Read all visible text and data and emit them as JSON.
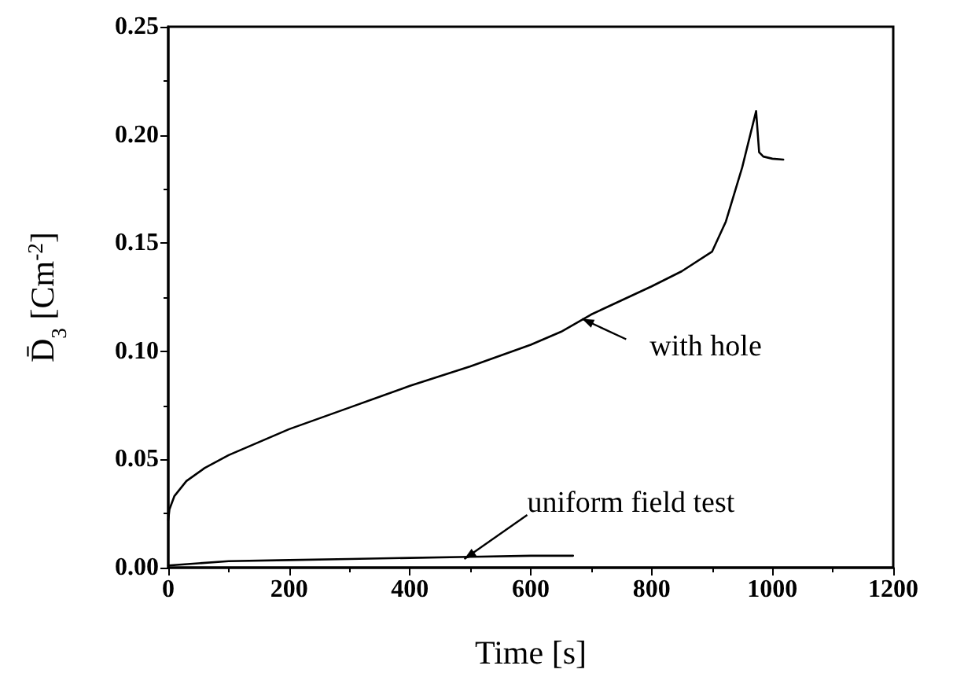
{
  "chart_data": {
    "type": "line",
    "xlabel": "Time [s]",
    "ylabel": "D̄$_{3}$ [Cm$^{-2}$]",
    "series": [
      {
        "color": "#000000",
        "x": [
          0,
          2,
          10,
          30,
          60,
          100,
          150,
          200,
          300,
          400,
          500,
          600,
          650,
          700,
          800,
          850,
          900,
          923,
          950,
          973,
          978,
          985,
          1000,
          1018
        ],
        "values": [
          0.022,
          0.027,
          0.033,
          0.04,
          0.046,
          0.052,
          0.058,
          0.064,
          0.074,
          0.084,
          0.093,
          0.103,
          0.109,
          0.117,
          0.13,
          0.137,
          0.146,
          0.16,
          0.185,
          0.211,
          0.192,
          0.19,
          0.189,
          0.1886
        ]
      },
      {
        "color": "#000000",
        "x": [
          0,
          50,
          100,
          200,
          300,
          400,
          500,
          600,
          670
        ],
        "values": [
          0.001,
          0.002,
          0.003,
          0.0035,
          0.004,
          0.0045,
          0.005,
          0.0055,
          0.0055
        ]
      }
    ],
    "xlim": [
      0,
      1200
    ],
    "xticks": [
      0,
      200,
      400,
      600,
      800,
      1000,
      1200
    ],
    "ylim": [
      0,
      0.25
    ],
    "yticks": [
      {
        "value": 0,
        "label": "0.00"
      },
      {
        "value": 0.05,
        "label": "0.05"
      },
      {
        "value": 0.1,
        "label": "0.10"
      },
      {
        "value": 0.15,
        "label": "0.15"
      },
      {
        "value": 0.2,
        "label": "0.20"
      },
      {
        "value": 0.25,
        "label": "0.25"
      }
    ],
    "annotations": [
      {
        "text": "with hole",
        "x": 685,
        "y": 0.115
      },
      {
        "text": "uniform field test",
        "x": 490,
        "y": 0.004
      }
    ],
    "grid": false,
    "marker": "none",
    "line_style": "solid"
  }
}
